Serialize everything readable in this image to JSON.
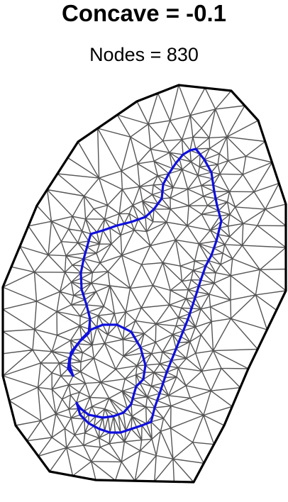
{
  "title": "Concave = -0.1",
  "subtitle": "Nodes = 830",
  "colors": {
    "mesh": "#555555",
    "outer_boundary": "#000000",
    "inner_boundary": "#1010dd",
    "background": "#ffffff"
  }
}
